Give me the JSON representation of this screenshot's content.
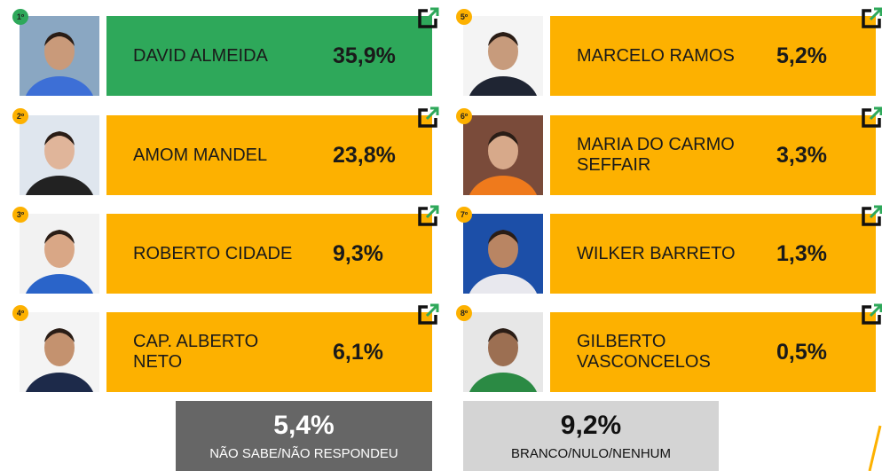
{
  "candidates": [
    {
      "rank": "1º",
      "name": [
        "DAVID ALMEIDA"
      ],
      "value": "35,9%"
    },
    {
      "rank": "2º",
      "name": [
        "AMOM MANDEL"
      ],
      "value": "23,8%"
    },
    {
      "rank": "3º",
      "name": [
        "ROBERTO CIDADE"
      ],
      "value": "9,3%"
    },
    {
      "rank": "4º",
      "name": [
        "CAP. ALBERTO",
        "NETO"
      ],
      "value": "6,1%"
    },
    {
      "rank": "5º",
      "name": [
        "MARCELO RAMOS"
      ],
      "value": "5,2%"
    },
    {
      "rank": "6º",
      "name": [
        "MARIA DO CARMO",
        "SEFFAIR"
      ],
      "value": "3,3%"
    },
    {
      "rank": "7º",
      "name": [
        "WILKER BARRETO"
      ],
      "value": "1,3%"
    },
    {
      "rank": "8º",
      "name": [
        "GILBERTO",
        "VASCONCELOS"
      ],
      "value": "0,5%"
    }
  ],
  "others": [
    {
      "value": "5,4%",
      "label": "NÃO SABE/NÃO RESPONDEU"
    },
    {
      "value": "9,2%",
      "label": "BRANCO/NULO/NENHUM"
    }
  ]
}
